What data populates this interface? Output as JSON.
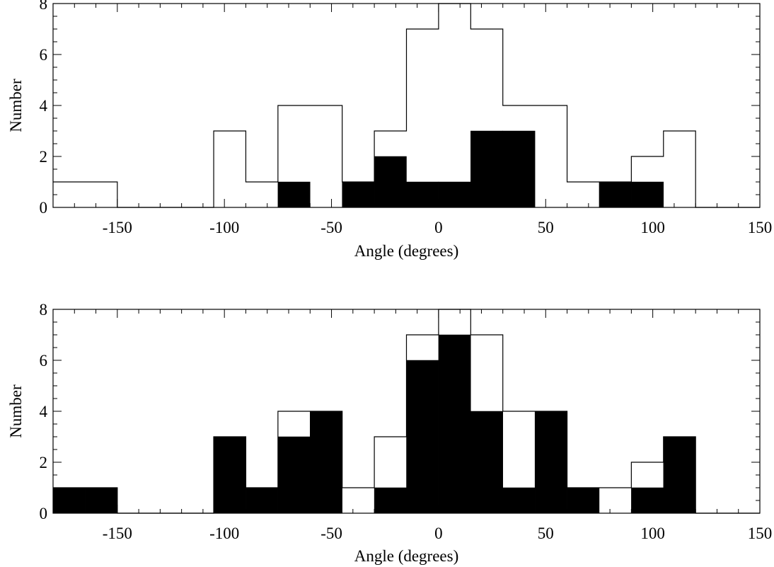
{
  "chart_data": [
    {
      "type": "histogram",
      "xlabel": "Angle (degrees)",
      "ylabel": "Number",
      "xlim": [
        -180,
        150
      ],
      "ylim": [
        0,
        8
      ],
      "xticks": [
        -150,
        -100,
        -50,
        0,
        50,
        100,
        150
      ],
      "yticks": [
        0,
        2,
        4,
        6,
        8
      ],
      "bin_edges": [
        -180,
        -165,
        -150,
        -135,
        -120,
        -105,
        -90,
        -75,
        -60,
        -45,
        -30,
        -15,
        0,
        15,
        30,
        45,
        60,
        75,
        90,
        105,
        120,
        135,
        150
      ],
      "series": [
        {
          "style": "outline",
          "values": [
            1,
            1,
            0,
            0,
            0,
            3,
            1,
            4,
            4,
            1,
            3,
            7,
            8,
            7,
            4,
            4,
            1,
            1,
            2,
            3,
            0,
            0
          ]
        },
        {
          "style": "filled",
          "values": [
            0,
            0,
            0,
            0,
            0,
            0,
            0,
            1,
            0,
            1,
            2,
            1,
            1,
            3,
            3,
            0,
            0,
            1,
            1,
            0,
            0,
            0
          ]
        }
      ]
    },
    {
      "type": "histogram",
      "xlabel": "Angle (degrees)",
      "ylabel": "Number",
      "xlim": [
        -180,
        150
      ],
      "ylim": [
        0,
        8
      ],
      "xticks": [
        -150,
        -100,
        -50,
        0,
        50,
        100,
        150
      ],
      "yticks": [
        0,
        2,
        4,
        6,
        8
      ],
      "bin_edges": [
        -180,
        -165,
        -150,
        -135,
        -120,
        -105,
        -90,
        -75,
        -60,
        -45,
        -30,
        -15,
        0,
        15,
        30,
        45,
        60,
        75,
        90,
        105,
        120,
        135,
        150
      ],
      "series": [
        {
          "style": "outline",
          "values": [
            1,
            1,
            0,
            0,
            0,
            3,
            1,
            4,
            4,
            1,
            3,
            7,
            8,
            7,
            4,
            4,
            1,
            1,
            2,
            3,
            0,
            0
          ]
        },
        {
          "style": "filled",
          "values": [
            1,
            1,
            0,
            0,
            0,
            3,
            1,
            3,
            4,
            0,
            1,
            6,
            7,
            4,
            1,
            4,
            1,
            0,
            1,
            3,
            0,
            0
          ]
        }
      ]
    }
  ]
}
